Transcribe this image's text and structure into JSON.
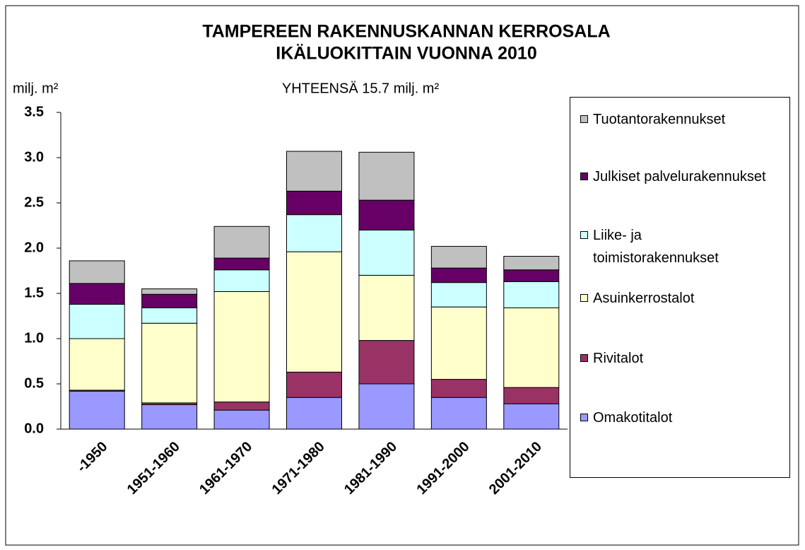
{
  "chart_data": {
    "type": "stacked_bar",
    "title": [
      "TAMPEREEN RAKENNUSKANNAN KERROSALA",
      "IKÄLUOKITTAIN VUONNA 2010"
    ],
    "ylabel": "milj. m²",
    "subtitle": "YHTEENSÄ 15.7 milj. m²",
    "categories": [
      "-1950",
      "1951-1960",
      "1961-1970",
      "1971-1980",
      "1981-1990",
      "1991-2000",
      "2001-2010"
    ],
    "series": [
      {
        "name": "Omakotitalot",
        "color": "#9999ff",
        "values": [
          0.42,
          0.27,
          0.21,
          0.35,
          0.5,
          0.35,
          0.28
        ]
      },
      {
        "name": "Rivitalot",
        "color": "#993366",
        "values": [
          0.01,
          0.02,
          0.09,
          0.28,
          0.48,
          0.2,
          0.18
        ]
      },
      {
        "name": "Asuinkerrostalot",
        "color": "#ffffcc",
        "values": [
          0.57,
          0.88,
          1.22,
          1.33,
          0.72,
          0.8,
          0.88
        ]
      },
      {
        "name": "Liike- ja toimistorakennukset",
        "color": "#ccffff",
        "values": [
          0.38,
          0.17,
          0.24,
          0.41,
          0.5,
          0.27,
          0.29
        ]
      },
      {
        "name": "Julkiset palvelurakennukset",
        "color": "#660066",
        "values": [
          0.23,
          0.15,
          0.13,
          0.26,
          0.33,
          0.16,
          0.13
        ]
      },
      {
        "name": "Tuotantorakennukset",
        "color": "#c0c0c0",
        "values": [
          0.25,
          0.06,
          0.35,
          0.44,
          0.53,
          0.24,
          0.15
        ]
      }
    ],
    "ylim": [
      0,
      3.5
    ],
    "yticks": [
      {
        "value": 0,
        "label": "0.0"
      },
      0.5,
      {
        "value": 1,
        "label": "1.0"
      },
      1.5,
      {
        "value": 2,
        "label": "2.0"
      },
      2.5,
      {
        "value": 3,
        "label": "3.0"
      },
      3.5
    ],
    "legend": "right"
  }
}
